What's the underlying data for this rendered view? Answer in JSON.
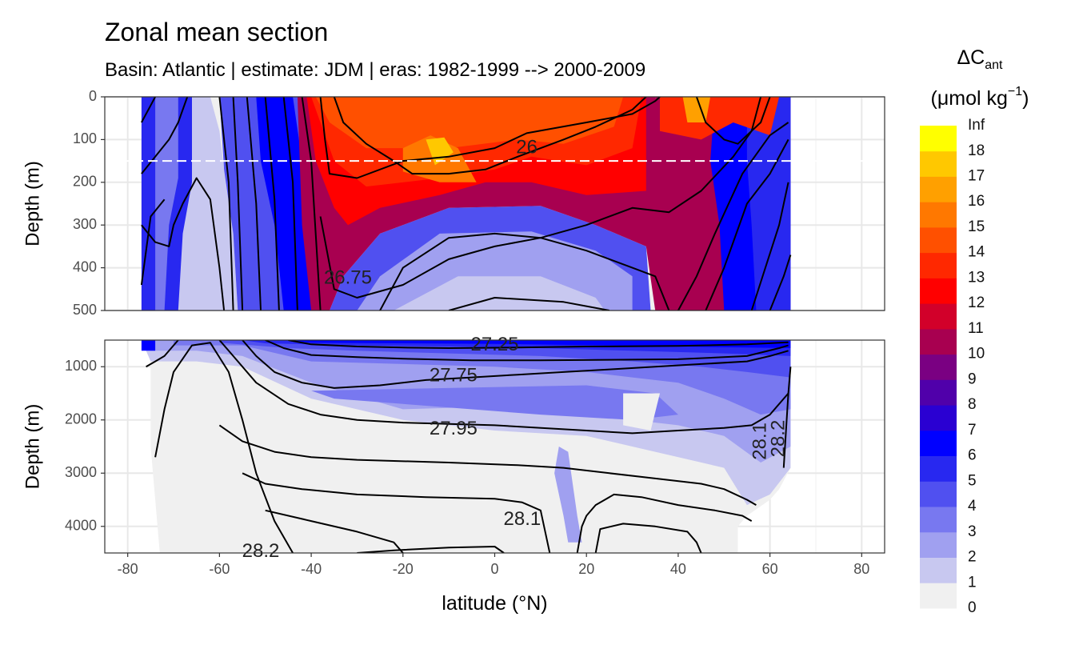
{
  "title": "Zonal mean section",
  "subtitle": "Basin: Atlantic | estimate: JDM  | eras: 1982-1999 --> 2000-2009",
  "chart_data": {
    "type": "heatmap",
    "subtype": "filled contour section with isopycnal contour lines",
    "xlabel": "latitude (°N)",
    "x_ticks": [
      -80,
      -60,
      -40,
      -20,
      0,
      20,
      40,
      60,
      80
    ],
    "xlim": [
      -85,
      85
    ],
    "ylabel": "Depth (m)",
    "reference_line_depth": 150,
    "panels": [
      {
        "name": "upper",
        "ylim": [
          0,
          500
        ],
        "y_ticks": [
          0,
          100,
          200,
          300,
          400,
          500
        ]
      },
      {
        "name": "lower",
        "ylim": [
          500,
          4500
        ],
        "y_ticks": [
          1000,
          2000,
          3000,
          4000
        ]
      }
    ],
    "legend": {
      "title_main": "ΔC",
      "title_sub": "ant",
      "unit_main": "(μmol kg",
      "unit_sup": "−1",
      "unit_end": ")",
      "placement": "right",
      "breaks": [
        "0",
        "1",
        "2",
        "3",
        "4",
        "5",
        "6",
        "7",
        "8",
        "9",
        "10",
        "11",
        "12",
        "13",
        "14",
        "15",
        "16",
        "17",
        "18",
        "Inf"
      ],
      "colors": [
        "#f0f0f0",
        "#c8c8f0",
        "#a0a0f0",
        "#7878f0",
        "#5050f0",
        "#2828f0",
        "#0000ff",
        "#2a00d2",
        "#5000aa",
        "#7a0082",
        "#a80050",
        "#d2002a",
        "#ff0000",
        "#ff2800",
        "#ff5000",
        "#ff7800",
        "#ffa000",
        "#ffc800",
        "#ffff00"
      ]
    },
    "contour_labels": [
      {
        "text": "26",
        "lat": 7,
        "depth": 120
      },
      {
        "text": "26.75",
        "lat": -32,
        "depth": 425
      },
      {
        "text": "27.25",
        "lat": 0,
        "depth": 600
      },
      {
        "text": "27.75",
        "lat": -9,
        "depth": 1180
      },
      {
        "text": "27.95",
        "lat": -9,
        "depth": 2180
      },
      {
        "text": "28.1",
        "lat": 6,
        "depth": 3880
      },
      {
        "text": "28.2",
        "lat": -51,
        "depth": 4480
      },
      {
        "text": "28.1",
        "lat": 58,
        "depth": 2400
      },
      {
        "text": "28.2",
        "lat": 62,
        "depth": 2350
      }
    ]
  }
}
